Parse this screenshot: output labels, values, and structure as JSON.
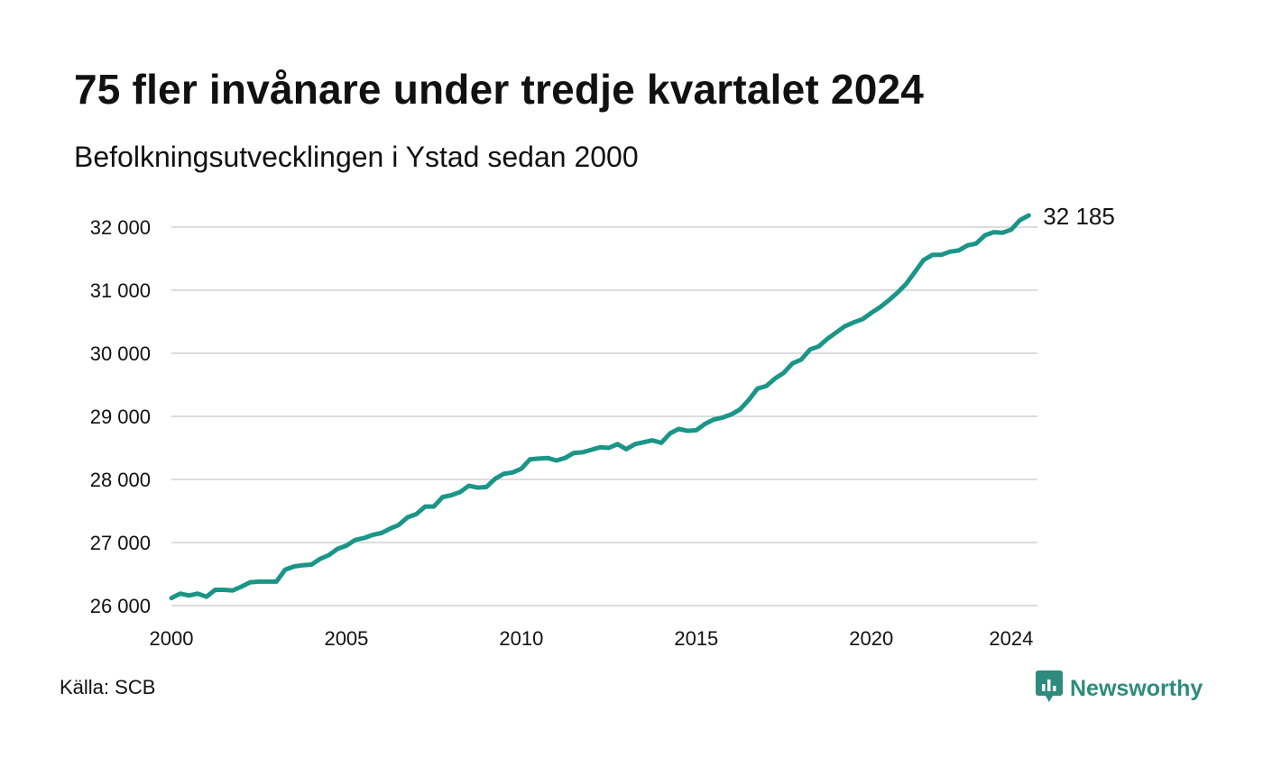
{
  "title": "75 fler invånare under tredje kvartalet 2024",
  "subtitle": "Befolkningsutvecklingen i Ystad sedan 2000",
  "source": "Källa: SCB",
  "brand": {
    "name": "Newsworthy",
    "icon": "newsworthy-logo-icon",
    "color": "#2e8b7d"
  },
  "chart_data": {
    "type": "line",
    "title": "75 fler invånare under tredje kvartalet 2024",
    "subtitle": "Befolkningsutvecklingen i Ystad sedan 2000",
    "xlabel": "",
    "ylabel": "",
    "xlim": [
      2000,
      2024.75
    ],
    "ylim": [
      26000,
      32400
    ],
    "x_ticks": [
      2000,
      2005,
      2010,
      2015,
      2020,
      2024
    ],
    "x_tick_labels": [
      "2000",
      "2005",
      "2010",
      "2015",
      "2020",
      "2024"
    ],
    "y_ticks": [
      26000,
      27000,
      28000,
      29000,
      30000,
      31000,
      32000
    ],
    "y_tick_labels": [
      "26 000",
      "27 000",
      "28 000",
      "29 000",
      "30 000",
      "31 000",
      "32 000"
    ],
    "grid": "horizontal",
    "line_color": "#1a9587",
    "end_label": "32 185",
    "series": [
      {
        "x": [
          2000.0,
          2000.25,
          2000.5,
          2000.75,
          2001.0,
          2001.25,
          2001.5,
          2001.75,
          2002.0,
          2002.25,
          2002.5,
          2002.75,
          2003.0,
          2003.25,
          2003.5,
          2003.75,
          2004.0,
          2004.25,
          2004.5,
          2004.75,
          2005.0,
          2005.25,
          2005.5,
          2005.75,
          2006.0,
          2006.25,
          2006.5,
          2006.75,
          2007.0,
          2007.25,
          2007.5,
          2007.75,
          2008.0,
          2008.25,
          2008.5,
          2008.75,
          2009.0,
          2009.25,
          2009.5,
          2009.75,
          2010.0,
          2010.25,
          2010.5,
          2010.75,
          2011.0,
          2011.25,
          2011.5,
          2011.75,
          2012.0,
          2012.25,
          2012.5,
          2012.75,
          2013.0,
          2013.25,
          2013.5,
          2013.75,
          2014.0,
          2014.25,
          2014.5,
          2014.75,
          2015.0,
          2015.25,
          2015.5,
          2015.75,
          2016.0,
          2016.25,
          2016.5,
          2016.75,
          2017.0,
          2017.25,
          2017.5,
          2017.75,
          2018.0,
          2018.25,
          2018.5,
          2018.75,
          2019.0,
          2019.25,
          2019.5,
          2019.75,
          2020.0,
          2020.25,
          2020.5,
          2020.75,
          2021.0,
          2021.25,
          2021.5,
          2021.75,
          2022.0,
          2022.25,
          2022.5,
          2022.75,
          2023.0,
          2023.25,
          2023.5,
          2023.75,
          2024.0,
          2024.25,
          2024.5
        ],
        "values": [
          26120,
          26190,
          26160,
          26190,
          26140,
          26250,
          26250,
          26240,
          26300,
          26370,
          26380,
          26380,
          26380,
          26570,
          26620,
          26640,
          26650,
          26740,
          26800,
          26900,
          26950,
          27040,
          27070,
          27120,
          27150,
          27220,
          27280,
          27400,
          27450,
          27570,
          27570,
          27720,
          27750,
          27800,
          27900,
          27870,
          27880,
          28010,
          28090,
          28110,
          28170,
          28320,
          28330,
          28340,
          28300,
          28340,
          28420,
          28430,
          28470,
          28510,
          28500,
          28560,
          28480,
          28560,
          28590,
          28620,
          28580,
          28730,
          28800,
          28770,
          28780,
          28880,
          28950,
          28980,
          29030,
          29110,
          29260,
          29440,
          29480,
          29600,
          29690,
          29840,
          29900,
          30060,
          30110,
          30230,
          30330,
          30430,
          30490,
          30540,
          30640,
          30730,
          30840,
          30960,
          31100,
          31290,
          31480,
          31560,
          31560,
          31610,
          31630,
          31710,
          31740,
          31870,
          31920,
          31910,
          31960,
          32110,
          32185
        ]
      }
    ]
  }
}
